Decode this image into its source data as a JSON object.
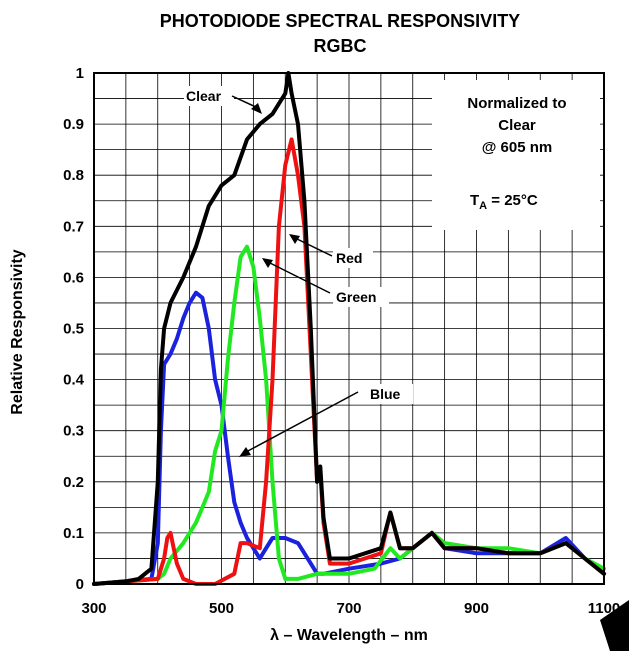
{
  "chart_data": {
    "type": "line",
    "title": "PHOTODIODE SPECTRAL RESPONSIVITY",
    "subtitle": "RGBC",
    "xlabel": "λ – Wavelength – nm",
    "ylabel": "Relative Responsivity",
    "xlim": [
      300,
      1100
    ],
    "ylim": [
      0,
      1
    ],
    "x_ticks": [
      300,
      500,
      700,
      900,
      1100
    ],
    "y_ticks": [
      0,
      0.1,
      0.2,
      0.3,
      0.4,
      0.5,
      0.6,
      0.7,
      0.8,
      0.9,
      1
    ],
    "x_tick_labels": [
      "300",
      "500",
      "700",
      "900",
      "1100"
    ],
    "y_tick_labels": [
      "0",
      "0.1",
      "0.2",
      "0.3",
      "0.4",
      "0.5",
      "0.6",
      "0.7",
      "0.8",
      "0.9",
      "1"
    ],
    "grid": true,
    "annotations": {
      "norm_line1": "Normalized to",
      "norm_line2": "Clear",
      "norm_line3": "@ 605 nm",
      "temp_main": "T",
      "temp_sub": "A",
      "temp_rest": " = 25°C"
    },
    "series": [
      {
        "name": "Clear",
        "color": "#000000",
        "x": [
          300,
          350,
          370,
          390,
          400,
          405,
          410,
          420,
          440,
          460,
          480,
          500,
          520,
          540,
          560,
          580,
          600,
          605,
          610,
          620,
          630,
          640,
          650,
          655,
          660,
          670,
          700,
          750,
          765,
          780,
          800,
          830,
          850,
          900,
          950,
          1000,
          1040,
          1070,
          1100
        ],
        "y": [
          0,
          0.005,
          0.01,
          0.03,
          0.2,
          0.42,
          0.5,
          0.55,
          0.6,
          0.66,
          0.74,
          0.78,
          0.8,
          0.87,
          0.9,
          0.92,
          0.96,
          1.0,
          0.96,
          0.9,
          0.75,
          0.5,
          0.2,
          0.23,
          0.13,
          0.05,
          0.05,
          0.07,
          0.14,
          0.07,
          0.07,
          0.1,
          0.07,
          0.07,
          0.06,
          0.06,
          0.08,
          0.05,
          0.02
        ]
      },
      {
        "name": "Red",
        "color": "#ee1111",
        "x": [
          300,
          400,
          410,
          415,
          420,
          430,
          440,
          460,
          490,
          520,
          530,
          540,
          560,
          570,
          580,
          590,
          600,
          610,
          620,
          630,
          640,
          650,
          655,
          660,
          670,
          700,
          750,
          765,
          780,
          800,
          830,
          850,
          900,
          950,
          1000,
          1040,
          1070,
          1100
        ],
        "y": [
          0,
          0.01,
          0.05,
          0.09,
          0.1,
          0.04,
          0.01,
          0.0,
          0.0,
          0.02,
          0.08,
          0.08,
          0.07,
          0.2,
          0.4,
          0.7,
          0.82,
          0.87,
          0.8,
          0.7,
          0.45,
          0.2,
          0.22,
          0.12,
          0.04,
          0.04,
          0.06,
          0.14,
          0.07,
          0.07,
          0.1,
          0.07,
          0.07,
          0.06,
          0.06,
          0.08,
          0.05,
          0.02
        ]
      },
      {
        "name": "Green",
        "color": "#22e822",
        "x": [
          300,
          400,
          410,
          420,
          440,
          460,
          470,
          480,
          490,
          500,
          510,
          520,
          530,
          540,
          550,
          560,
          570,
          580,
          590,
          600,
          610,
          620,
          650,
          680,
          700,
          740,
          765,
          780,
          800,
          830,
          850,
          900,
          950,
          1000,
          1040,
          1070,
          1100
        ],
        "y": [
          0,
          0.01,
          0.02,
          0.05,
          0.08,
          0.12,
          0.15,
          0.18,
          0.26,
          0.3,
          0.44,
          0.55,
          0.64,
          0.66,
          0.62,
          0.52,
          0.4,
          0.2,
          0.05,
          0.01,
          0.01,
          0.01,
          0.02,
          0.02,
          0.02,
          0.03,
          0.07,
          0.05,
          0.07,
          0.1,
          0.08,
          0.07,
          0.07,
          0.06,
          0.08,
          0.05,
          0.03
        ]
      },
      {
        "name": "Blue",
        "color": "#1a22dd",
        "x": [
          300,
          390,
          400,
          405,
          410,
          420,
          430,
          440,
          450,
          460,
          470,
          480,
          490,
          500,
          510,
          520,
          530,
          540,
          550,
          560,
          570,
          580,
          600,
          620,
          640,
          650,
          660,
          700,
          750,
          780,
          800,
          830,
          850,
          900,
          950,
          1000,
          1040,
          1070,
          1100
        ],
        "y": [
          0,
          0.01,
          0.08,
          0.3,
          0.43,
          0.45,
          0.48,
          0.52,
          0.55,
          0.57,
          0.56,
          0.5,
          0.4,
          0.35,
          0.25,
          0.16,
          0.12,
          0.09,
          0.07,
          0.05,
          0.07,
          0.09,
          0.09,
          0.08,
          0.04,
          0.02,
          0.02,
          0.03,
          0.04,
          0.05,
          0.07,
          0.1,
          0.07,
          0.06,
          0.06,
          0.06,
          0.09,
          0.05,
          0.02
        ]
      }
    ]
  }
}
